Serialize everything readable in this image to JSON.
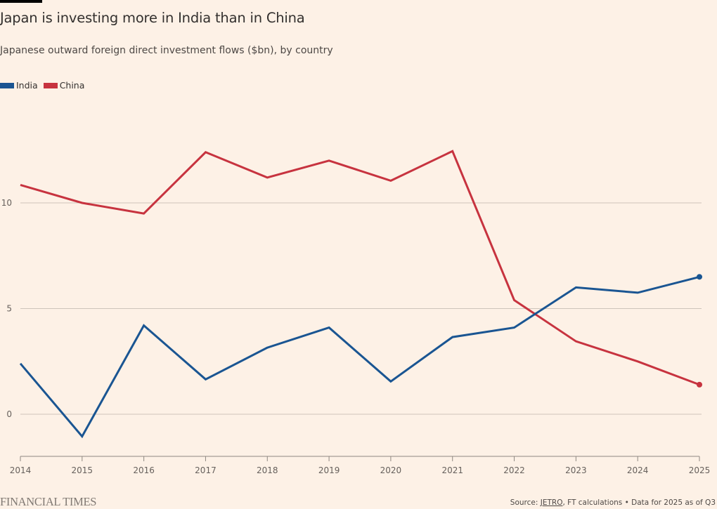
{
  "header": {
    "title": "Japan is investing more in India than in China",
    "subtitle": "Japanese outward foreign direct investment flows ($bn), by country"
  },
  "legend": [
    {
      "label": "India",
      "color": "#1a5592"
    },
    {
      "label": "China",
      "color": "#c7333f"
    }
  ],
  "chart_data": {
    "type": "line",
    "title": "Japan is investing more in India than in China",
    "subtitle": "Japanese outward foreign direct investment flows ($bn), by country",
    "xlabel": "",
    "ylabel": "",
    "x": [
      2014,
      2015,
      2016,
      2017,
      2018,
      2019,
      2020,
      2021,
      2022,
      2023,
      2024,
      2025
    ],
    "x_tick_labels": [
      "2014",
      "2015",
      "2016",
      "2017",
      "2018",
      "2019",
      "2020",
      "2021",
      "2022",
      "2023",
      "2024",
      "2025"
    ],
    "y_ticks": [
      0,
      5,
      10
    ],
    "y_tick_labels": [
      "0",
      "5",
      "10"
    ],
    "ylim": [
      -2,
      14.5
    ],
    "grid": true,
    "legend_position": "top-left",
    "series": [
      {
        "name": "India",
        "color": "#1a5592",
        "values": [
          2.4,
          -1.05,
          4.2,
          1.65,
          3.15,
          4.1,
          1.55,
          3.65,
          4.1,
          6.0,
          5.75,
          6.5
        ],
        "end_marker": true
      },
      {
        "name": "China",
        "color": "#c7333f",
        "values": [
          10.85,
          10.0,
          9.5,
          12.4,
          11.2,
          12.0,
          11.05,
          12.45,
          5.4,
          3.45,
          2.5,
          1.4
        ],
        "end_marker": true
      }
    ]
  },
  "footer": {
    "logo": "FINANCIAL TIMES",
    "source_prefix": "Source: ",
    "source_link": "JETRO",
    "source_suffix": ", FT calculations • Data for 2025 as of Q3"
  }
}
